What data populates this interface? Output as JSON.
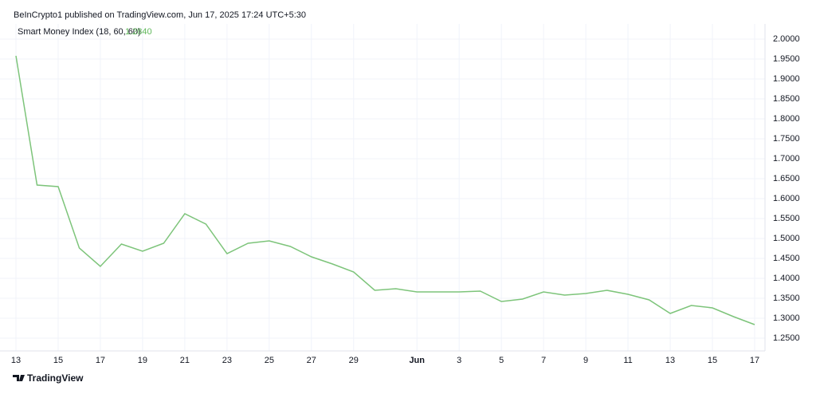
{
  "chart_data": {
    "type": "line",
    "header": "BeInCrypto1 published on TradingView.com, Jun 17, 2025 17:24 UTC+5:30",
    "current_value_label": "1.2840",
    "brand": "TradingView",
    "categories": [
      "13",
      null,
      "15",
      null,
      "17",
      null,
      "19",
      null,
      "21",
      null,
      "23",
      null,
      "25",
      null,
      "27",
      null,
      "29",
      null,
      null,
      "Jun",
      null,
      "3",
      null,
      "5",
      null,
      "7",
      null,
      "9",
      null,
      "11",
      null,
      "13",
      null,
      "15",
      null,
      "17"
    ],
    "series": [
      {
        "name": "Smart Money Index (18, 60, 60)",
        "color": "#7dc47a",
        "values": [
          1.958,
          1.634,
          1.63,
          1.476,
          1.43,
          1.486,
          1.468,
          1.488,
          1.562,
          1.536,
          1.462,
          1.488,
          1.494,
          1.48,
          1.454,
          1.436,
          1.416,
          1.37,
          1.374,
          1.366,
          1.366,
          1.366,
          1.368,
          1.342,
          1.348,
          1.366,
          1.358,
          1.362,
          1.37,
          1.36,
          1.346,
          1.312,
          1.332,
          1.326,
          1.304,
          1.284
        ]
      }
    ],
    "ylim": [
      1.218,
      2.038
    ],
    "yticks": [
      {
        "value": 1.25,
        "label": "1.2500"
      },
      {
        "value": 1.3,
        "label": "1.3000"
      },
      {
        "value": 1.35,
        "label": "1.3500"
      },
      {
        "value": 1.4,
        "label": "1.4000"
      },
      {
        "value": 1.45,
        "label": "1.4500"
      },
      {
        "value": 1.5,
        "label": "1.5000"
      },
      {
        "value": 1.55,
        "label": "1.5500"
      },
      {
        "value": 1.6,
        "label": "1.6000"
      },
      {
        "value": 1.65,
        "label": "1.6500"
      },
      {
        "value": 1.7,
        "label": "1.7000"
      },
      {
        "value": 1.75,
        "label": "1.7500"
      },
      {
        "value": 1.8,
        "label": "1.8000"
      },
      {
        "value": 1.85,
        "label": "1.8500"
      },
      {
        "value": 1.9,
        "label": "1.9000"
      },
      {
        "value": 1.95,
        "label": "1.9500"
      },
      {
        "value": 2.0,
        "label": "2.0000"
      }
    ],
    "grid": true
  }
}
